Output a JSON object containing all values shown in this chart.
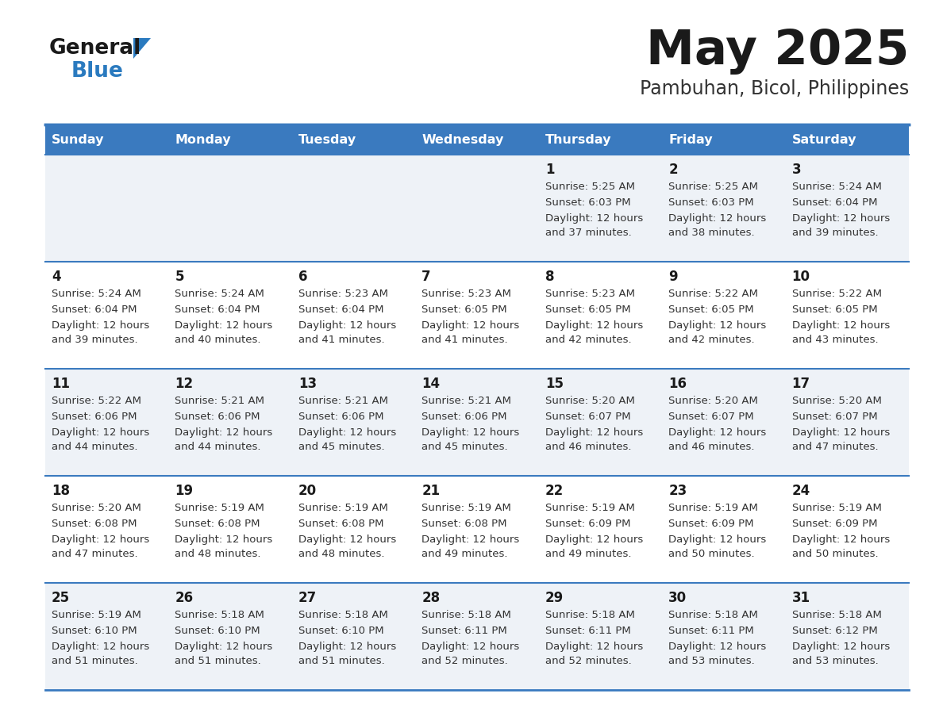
{
  "title": "May 2025",
  "subtitle": "Pambuhan, Bicol, Philippines",
  "days_of_week": [
    "Sunday",
    "Monday",
    "Tuesday",
    "Wednesday",
    "Thursday",
    "Friday",
    "Saturday"
  ],
  "header_bg": "#3a7abf",
  "header_text": "#ffffff",
  "row_bg_odd": "#eef2f7",
  "row_bg_even": "#ffffff",
  "border_color": "#3a7abf",
  "day_num_color": "#1a1a1a",
  "cell_text_color": "#333333",
  "title_color": "#1a1a1a",
  "subtitle_color": "#333333",
  "logo_general_color": "#1a1a1a",
  "logo_blue_color": "#2a7abf",
  "logo_triangle_color": "#2a7abf",
  "calendar_data": [
    [
      null,
      null,
      null,
      null,
      {
        "day": 1,
        "sunrise": "5:25 AM",
        "sunset": "6:03 PM",
        "daylight_line1": "Daylight: 12 hours",
        "daylight_line2": "and 37 minutes."
      },
      {
        "day": 2,
        "sunrise": "5:25 AM",
        "sunset": "6:03 PM",
        "daylight_line1": "Daylight: 12 hours",
        "daylight_line2": "and 38 minutes."
      },
      {
        "day": 3,
        "sunrise": "5:24 AM",
        "sunset": "6:04 PM",
        "daylight_line1": "Daylight: 12 hours",
        "daylight_line2": "and 39 minutes."
      }
    ],
    [
      {
        "day": 4,
        "sunrise": "5:24 AM",
        "sunset": "6:04 PM",
        "daylight_line1": "Daylight: 12 hours",
        "daylight_line2": "and 39 minutes."
      },
      {
        "day": 5,
        "sunrise": "5:24 AM",
        "sunset": "6:04 PM",
        "daylight_line1": "Daylight: 12 hours",
        "daylight_line2": "and 40 minutes."
      },
      {
        "day": 6,
        "sunrise": "5:23 AM",
        "sunset": "6:04 PM",
        "daylight_line1": "Daylight: 12 hours",
        "daylight_line2": "and 41 minutes."
      },
      {
        "day": 7,
        "sunrise": "5:23 AM",
        "sunset": "6:05 PM",
        "daylight_line1": "Daylight: 12 hours",
        "daylight_line2": "and 41 minutes."
      },
      {
        "day": 8,
        "sunrise": "5:23 AM",
        "sunset": "6:05 PM",
        "daylight_line1": "Daylight: 12 hours",
        "daylight_line2": "and 42 minutes."
      },
      {
        "day": 9,
        "sunrise": "5:22 AM",
        "sunset": "6:05 PM",
        "daylight_line1": "Daylight: 12 hours",
        "daylight_line2": "and 42 minutes."
      },
      {
        "day": 10,
        "sunrise": "5:22 AM",
        "sunset": "6:05 PM",
        "daylight_line1": "Daylight: 12 hours",
        "daylight_line2": "and 43 minutes."
      }
    ],
    [
      {
        "day": 11,
        "sunrise": "5:22 AM",
        "sunset": "6:06 PM",
        "daylight_line1": "Daylight: 12 hours",
        "daylight_line2": "and 44 minutes."
      },
      {
        "day": 12,
        "sunrise": "5:21 AM",
        "sunset": "6:06 PM",
        "daylight_line1": "Daylight: 12 hours",
        "daylight_line2": "and 44 minutes."
      },
      {
        "day": 13,
        "sunrise": "5:21 AM",
        "sunset": "6:06 PM",
        "daylight_line1": "Daylight: 12 hours",
        "daylight_line2": "and 45 minutes."
      },
      {
        "day": 14,
        "sunrise": "5:21 AM",
        "sunset": "6:06 PM",
        "daylight_line1": "Daylight: 12 hours",
        "daylight_line2": "and 45 minutes."
      },
      {
        "day": 15,
        "sunrise": "5:20 AM",
        "sunset": "6:07 PM",
        "daylight_line1": "Daylight: 12 hours",
        "daylight_line2": "and 46 minutes."
      },
      {
        "day": 16,
        "sunrise": "5:20 AM",
        "sunset": "6:07 PM",
        "daylight_line1": "Daylight: 12 hours",
        "daylight_line2": "and 46 minutes."
      },
      {
        "day": 17,
        "sunrise": "5:20 AM",
        "sunset": "6:07 PM",
        "daylight_line1": "Daylight: 12 hours",
        "daylight_line2": "and 47 minutes."
      }
    ],
    [
      {
        "day": 18,
        "sunrise": "5:20 AM",
        "sunset": "6:08 PM",
        "daylight_line1": "Daylight: 12 hours",
        "daylight_line2": "and 47 minutes."
      },
      {
        "day": 19,
        "sunrise": "5:19 AM",
        "sunset": "6:08 PM",
        "daylight_line1": "Daylight: 12 hours",
        "daylight_line2": "and 48 minutes."
      },
      {
        "day": 20,
        "sunrise": "5:19 AM",
        "sunset": "6:08 PM",
        "daylight_line1": "Daylight: 12 hours",
        "daylight_line2": "and 48 minutes."
      },
      {
        "day": 21,
        "sunrise": "5:19 AM",
        "sunset": "6:08 PM",
        "daylight_line1": "Daylight: 12 hours",
        "daylight_line2": "and 49 minutes."
      },
      {
        "day": 22,
        "sunrise": "5:19 AM",
        "sunset": "6:09 PM",
        "daylight_line1": "Daylight: 12 hours",
        "daylight_line2": "and 49 minutes."
      },
      {
        "day": 23,
        "sunrise": "5:19 AM",
        "sunset": "6:09 PM",
        "daylight_line1": "Daylight: 12 hours",
        "daylight_line2": "and 50 minutes."
      },
      {
        "day": 24,
        "sunrise": "5:19 AM",
        "sunset": "6:09 PM",
        "daylight_line1": "Daylight: 12 hours",
        "daylight_line2": "and 50 minutes."
      }
    ],
    [
      {
        "day": 25,
        "sunrise": "5:19 AM",
        "sunset": "6:10 PM",
        "daylight_line1": "Daylight: 12 hours",
        "daylight_line2": "and 51 minutes."
      },
      {
        "day": 26,
        "sunrise": "5:18 AM",
        "sunset": "6:10 PM",
        "daylight_line1": "Daylight: 12 hours",
        "daylight_line2": "and 51 minutes."
      },
      {
        "day": 27,
        "sunrise": "5:18 AM",
        "sunset": "6:10 PM",
        "daylight_line1": "Daylight: 12 hours",
        "daylight_line2": "and 51 minutes."
      },
      {
        "day": 28,
        "sunrise": "5:18 AM",
        "sunset": "6:11 PM",
        "daylight_line1": "Daylight: 12 hours",
        "daylight_line2": "and 52 minutes."
      },
      {
        "day": 29,
        "sunrise": "5:18 AM",
        "sunset": "6:11 PM",
        "daylight_line1": "Daylight: 12 hours",
        "daylight_line2": "and 52 minutes."
      },
      {
        "day": 30,
        "sunrise": "5:18 AM",
        "sunset": "6:11 PM",
        "daylight_line1": "Daylight: 12 hours",
        "daylight_line2": "and 53 minutes."
      },
      {
        "day": 31,
        "sunrise": "5:18 AM",
        "sunset": "6:12 PM",
        "daylight_line1": "Daylight: 12 hours",
        "daylight_line2": "and 53 minutes."
      }
    ]
  ]
}
